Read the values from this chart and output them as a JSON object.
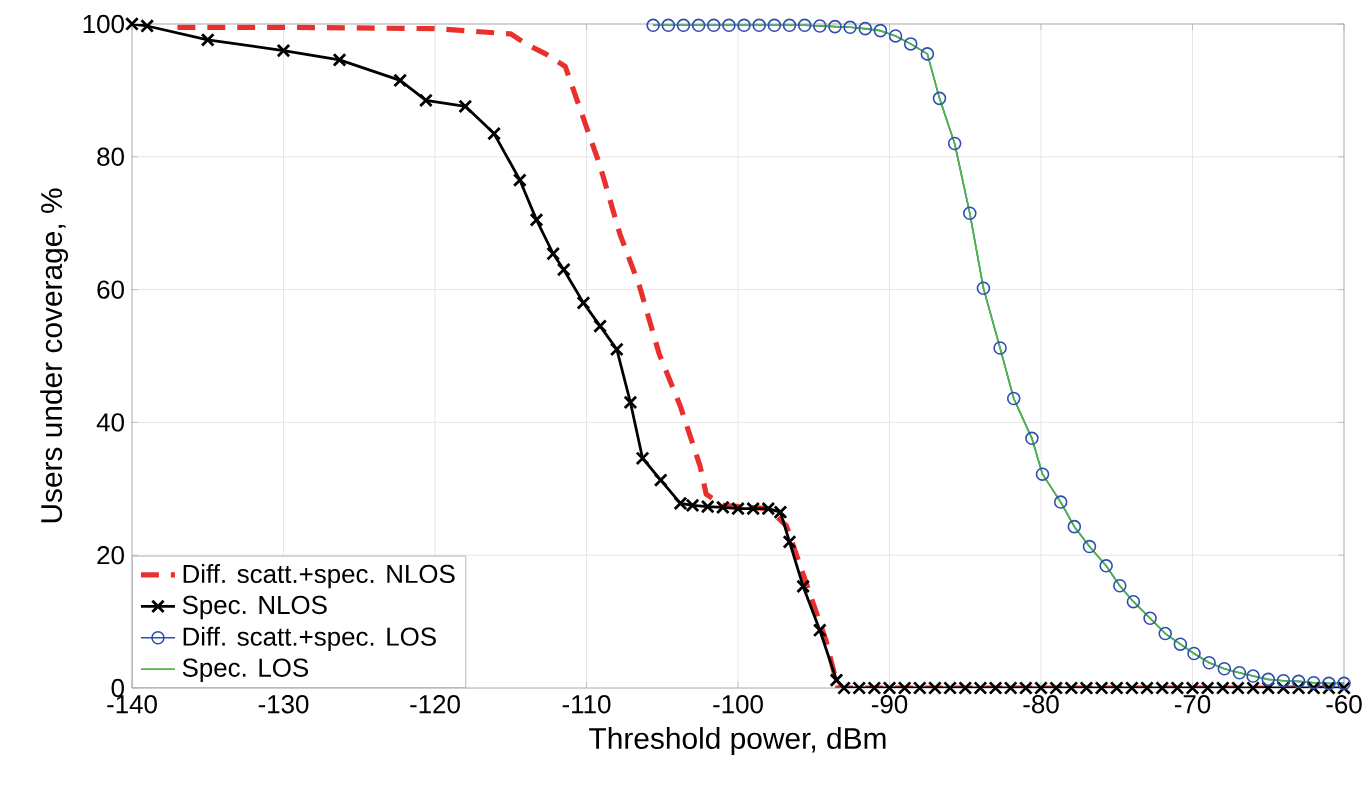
{
  "chart_data": {
    "type": "line",
    "xlabel": "Threshold power, dBm",
    "ylabel": "Users under coverage, %",
    "xlim": [
      -140,
      -60
    ],
    "xticks": [
      -140,
      -130,
      -120,
      -110,
      -100,
      -90,
      -80,
      -70,
      -60
    ],
    "ylim": [
      0,
      100
    ],
    "yticks": [
      0,
      20,
      40,
      60,
      80,
      100
    ],
    "grid": true,
    "legend": "bottom left",
    "series": [
      {
        "name": "Diff. scatt.+spec. NLOS",
        "color": "#e8312f",
        "marker": "none",
        "line_style": "dashed",
        "x": [
          -137,
          -130,
          -120,
          -115,
          -114,
          -112.7,
          -111.4,
          -109.1,
          -107.8,
          -106.5,
          -105.2,
          -103.8,
          -102.5,
          -102.1,
          -101,
          -98,
          -96.8,
          -94.2,
          -93.4,
          -60
        ],
        "values": [
          99.5,
          99.5,
          99.3,
          98.5,
          97,
          95.5,
          93.6,
          78.6,
          68.4,
          60.5,
          50.3,
          42.4,
          33.4,
          29.2,
          27.5,
          27,
          24.4,
          7.2,
          0,
          0
        ]
      },
      {
        "name": "Spec. NLOS",
        "color": "#000000",
        "marker": "cross",
        "line_style": "solid",
        "x": [
          -140,
          -139,
          -135,
          -130,
          -126.3,
          -122.3,
          -120.6,
          -118,
          -116.1,
          -114.4,
          -113.3,
          -112.2,
          -111.5,
          -110.2,
          -109.1,
          -108,
          -107.1,
          -106.3,
          -105.1,
          -103.8,
          -103,
          -102,
          -101,
          -100,
          -99,
          -98,
          -97.2,
          -96.6,
          -95.7,
          -94.6,
          -93.5,
          -93,
          -92,
          -91,
          -90,
          -89,
          -88,
          -87,
          -86,
          -85,
          -84,
          -83,
          -82,
          -81,
          -80,
          -79,
          -78,
          -77,
          -76,
          -75,
          -74,
          -73,
          -72,
          -71,
          -70,
          -69,
          -68,
          -67,
          -66,
          -65,
          -64,
          -63,
          -62,
          -61,
          -60
        ],
        "values": [
          100,
          99.7,
          97.6,
          96,
          94.6,
          91.5,
          88.5,
          87.6,
          83.5,
          76.5,
          70.5,
          65.4,
          63,
          58,
          54.5,
          51,
          43,
          34.6,
          31.3,
          27.8,
          27.5,
          27.3,
          27.2,
          27,
          27,
          27,
          26.5,
          22,
          15.3,
          8.7,
          1.2,
          0,
          0,
          0,
          0,
          0,
          0,
          0,
          0,
          0,
          0,
          0,
          0,
          0,
          0,
          0,
          0,
          0,
          0,
          0,
          0,
          0,
          0,
          0,
          0,
          0,
          0,
          0,
          0,
          0,
          0,
          0,
          0,
          0,
          0
        ]
      },
      {
        "name": "Diff. scatt.+spec. LOS",
        "color": "#2f4fae",
        "marker": "circle",
        "line_style": "solid",
        "x": [
          -105.6,
          -104.6,
          -103.6,
          -102.6,
          -101.6,
          -100.6,
          -99.6,
          -98.6,
          -97.6,
          -96.6,
          -95.6,
          -94.6,
          -93.6,
          -92.6,
          -91.6,
          -90.6,
          -89.6,
          -88.6,
          -87.5,
          -86.7,
          -85.7,
          -84.7,
          -83.8,
          -82.7,
          -81.8,
          -80.6,
          -79.9,
          -78.7,
          -77.8,
          -76.8,
          -75.7,
          -74.8,
          -73.9,
          -72.8,
          -71.8,
          -70.8,
          -69.9,
          -68.9,
          -67.9,
          -66.9,
          -66,
          -65,
          -64,
          -63,
          -62,
          -61,
          -60
        ],
        "values": [
          99.8,
          99.8,
          99.8,
          99.8,
          99.8,
          99.8,
          99.8,
          99.8,
          99.8,
          99.8,
          99.8,
          99.7,
          99.6,
          99.5,
          99.3,
          99,
          98.2,
          97,
          95.5,
          88.8,
          82,
          71.5,
          60.2,
          51.2,
          43.6,
          37.6,
          32.2,
          28,
          24.3,
          21.3,
          18.4,
          15.4,
          13,
          10.5,
          8.2,
          6.6,
          5.2,
          3.8,
          2.9,
          2.3,
          1.8,
          1.3,
          1.1,
          1,
          0.8,
          0.7,
          0.7
        ]
      },
      {
        "name": "Spec. LOS",
        "color": "#4cbb3c",
        "marker": "none",
        "line_style": "solid",
        "x": [
          -105.6,
          -100.6,
          -95.6,
          -92.6,
          -90.6,
          -89.6,
          -88.6,
          -87.5,
          -86.7,
          -85.7,
          -84.7,
          -83.8,
          -82.7,
          -81.8,
          -80.6,
          -79.9,
          -78.7,
          -77.8,
          -76.8,
          -75.7,
          -74.8,
          -73.9,
          -72.8,
          -71.8,
          -70.8,
          -69.9,
          -68.9,
          -67.9,
          -66.9,
          -66,
          -65,
          -64,
          -63,
          -62,
          -61,
          -60
        ],
        "values": [
          99.8,
          99.8,
          99.8,
          99.5,
          99,
          98.2,
          97,
          95.5,
          88.8,
          82,
          71.5,
          60.2,
          51.2,
          43.6,
          37.6,
          32.2,
          28,
          24.3,
          21.3,
          18.4,
          15.4,
          13,
          10.5,
          8.2,
          6.6,
          5.2,
          3.8,
          2.9,
          2.3,
          1.8,
          1.3,
          1.1,
          1,
          0.8,
          0.7,
          0.7
        ]
      }
    ]
  }
}
